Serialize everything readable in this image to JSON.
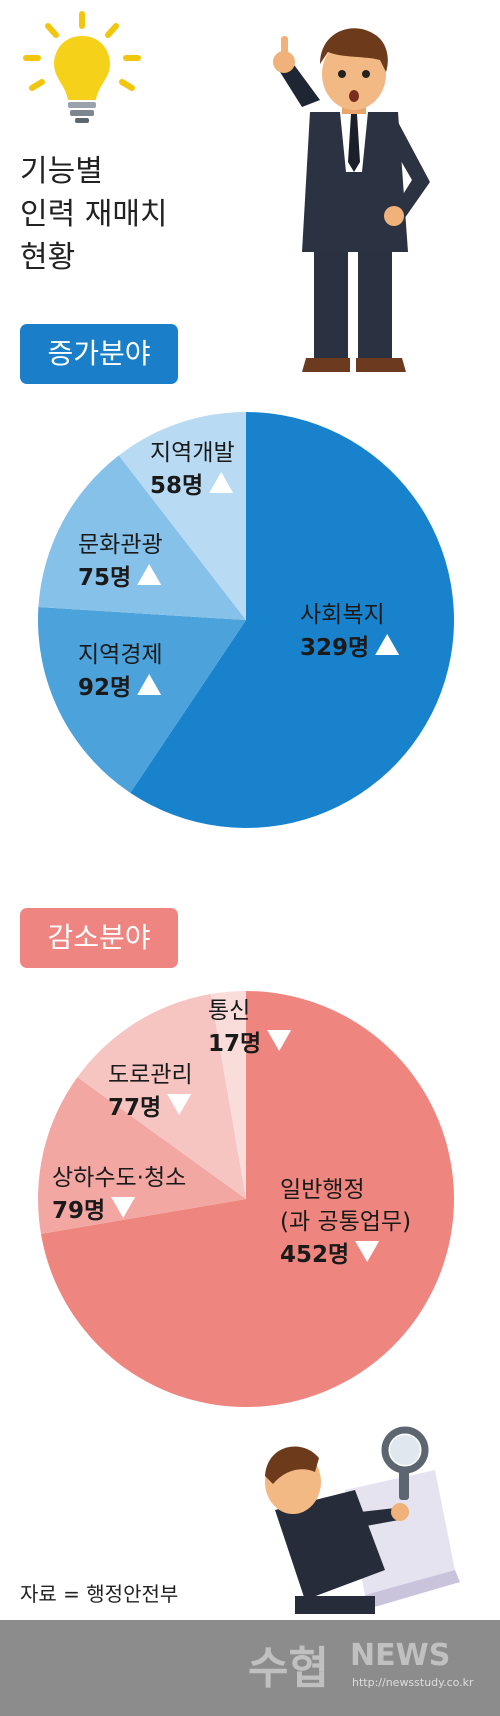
{
  "title_lines": [
    "기능별",
    "인력 재매치",
    "현황"
  ],
  "increase_label": "증가분야",
  "decrease_label": "감소분야",
  "source": "자료 = 행정안전부",
  "watermark": {
    "main": "수협",
    "news": "NEWS",
    "url": "http://newsstudy.co.kr"
  },
  "colors": {
    "increase_badge": "#1a7fc8",
    "decrease_badge": "#ee8580"
  },
  "chart_data": [
    {
      "type": "pie",
      "title": "증가분야",
      "unit": "명",
      "trend": "up",
      "slices": [
        {
          "label": "사회복지",
          "value": 329,
          "value_text": "329명",
          "color": "#1883cc"
        },
        {
          "label": "지역경제",
          "value": 92,
          "value_text": "92명",
          "color": "#4ca2db"
        },
        {
          "label": "문화관광",
          "value": 75,
          "value_text": "75명",
          "color": "#86c1e9"
        },
        {
          "label": "지역개발",
          "value": 58,
          "value_text": "58명",
          "color": "#b8dbf3"
        }
      ]
    },
    {
      "type": "pie",
      "title": "감소분야",
      "unit": "명",
      "trend": "down",
      "slices": [
        {
          "label": "일반행정",
          "sublabel": "(과 공통업무)",
          "value": 452,
          "value_text": "452명",
          "color": "#ee867f"
        },
        {
          "label": "상하수도·청소",
          "value": 79,
          "value_text": "79명",
          "color": "#f2a7a2"
        },
        {
          "label": "도로관리",
          "value": 77,
          "value_text": "77명",
          "color": "#f6c5c2"
        },
        {
          "label": "통신",
          "value": 17,
          "value_text": "17명",
          "color": "#f9dddb"
        }
      ]
    }
  ]
}
